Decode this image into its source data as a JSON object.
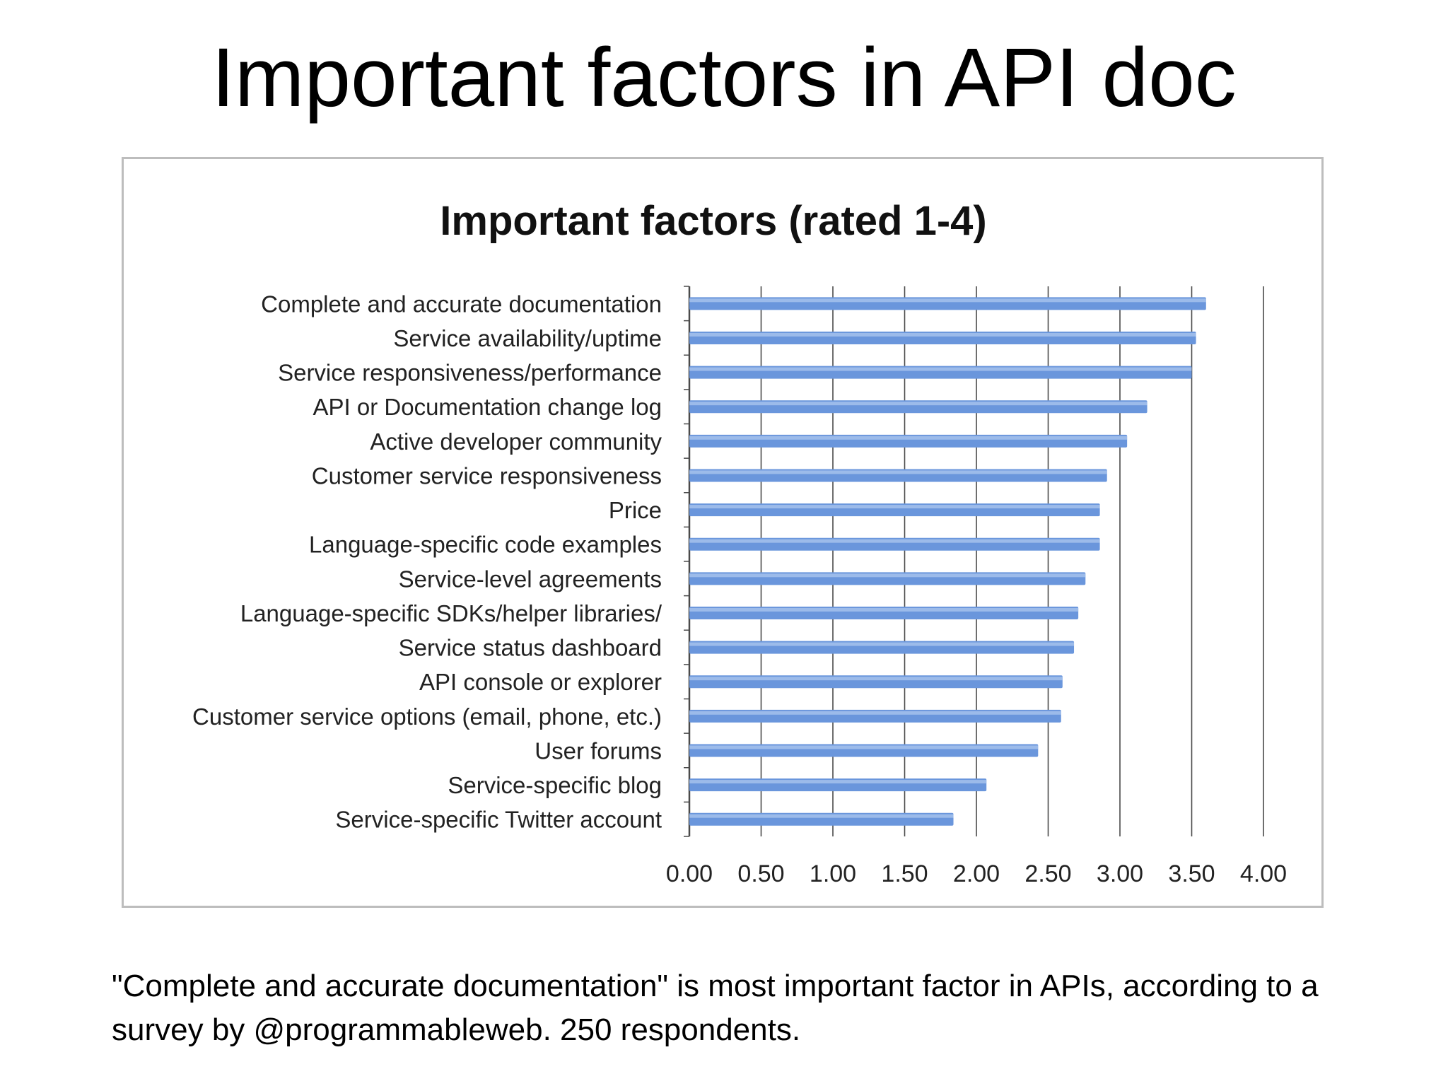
{
  "slide": {
    "title": "Important factors in API doc",
    "caption": "\"Complete and accurate documentation\" is most important factor in APIs, according to a survey by @programmableweb. 250 respondents."
  },
  "colors": {
    "bar": "#6a96dc",
    "bar_highlight": "#a9c4ee",
    "gridline": "#4a4a4a",
    "frame": "#bdbdbd"
  },
  "chart_data": {
    "type": "bar",
    "orientation": "horizontal",
    "title": "Important factors (rated 1-4)",
    "xlabel": "",
    "ylabel": "",
    "xlim": [
      0,
      4
    ],
    "x_ticks": [
      "0.00",
      "0.50",
      "1.00",
      "1.50",
      "2.00",
      "2.50",
      "3.00",
      "3.50",
      "4.00"
    ],
    "grid": "vertical",
    "legend": "none",
    "categories": [
      "Complete and accurate documentation",
      "Service availability/uptime",
      "Service responsiveness/performance",
      "API or Documentation change log",
      "Active developer community",
      "Customer service responsiveness",
      "Price",
      "Language-specific code examples",
      "Service-level agreements",
      "Language-specific SDKs/helper libraries/",
      "Service status dashboard",
      "API console or explorer",
      "Customer service options (email, phone, etc.)",
      "User forums",
      "Service-specific blog",
      "Service-specific Twitter account"
    ],
    "values": [
      3.6,
      3.53,
      3.5,
      3.19,
      3.05,
      2.91,
      2.86,
      2.86,
      2.76,
      2.71,
      2.68,
      2.6,
      2.59,
      2.43,
      2.07,
      1.84
    ]
  }
}
